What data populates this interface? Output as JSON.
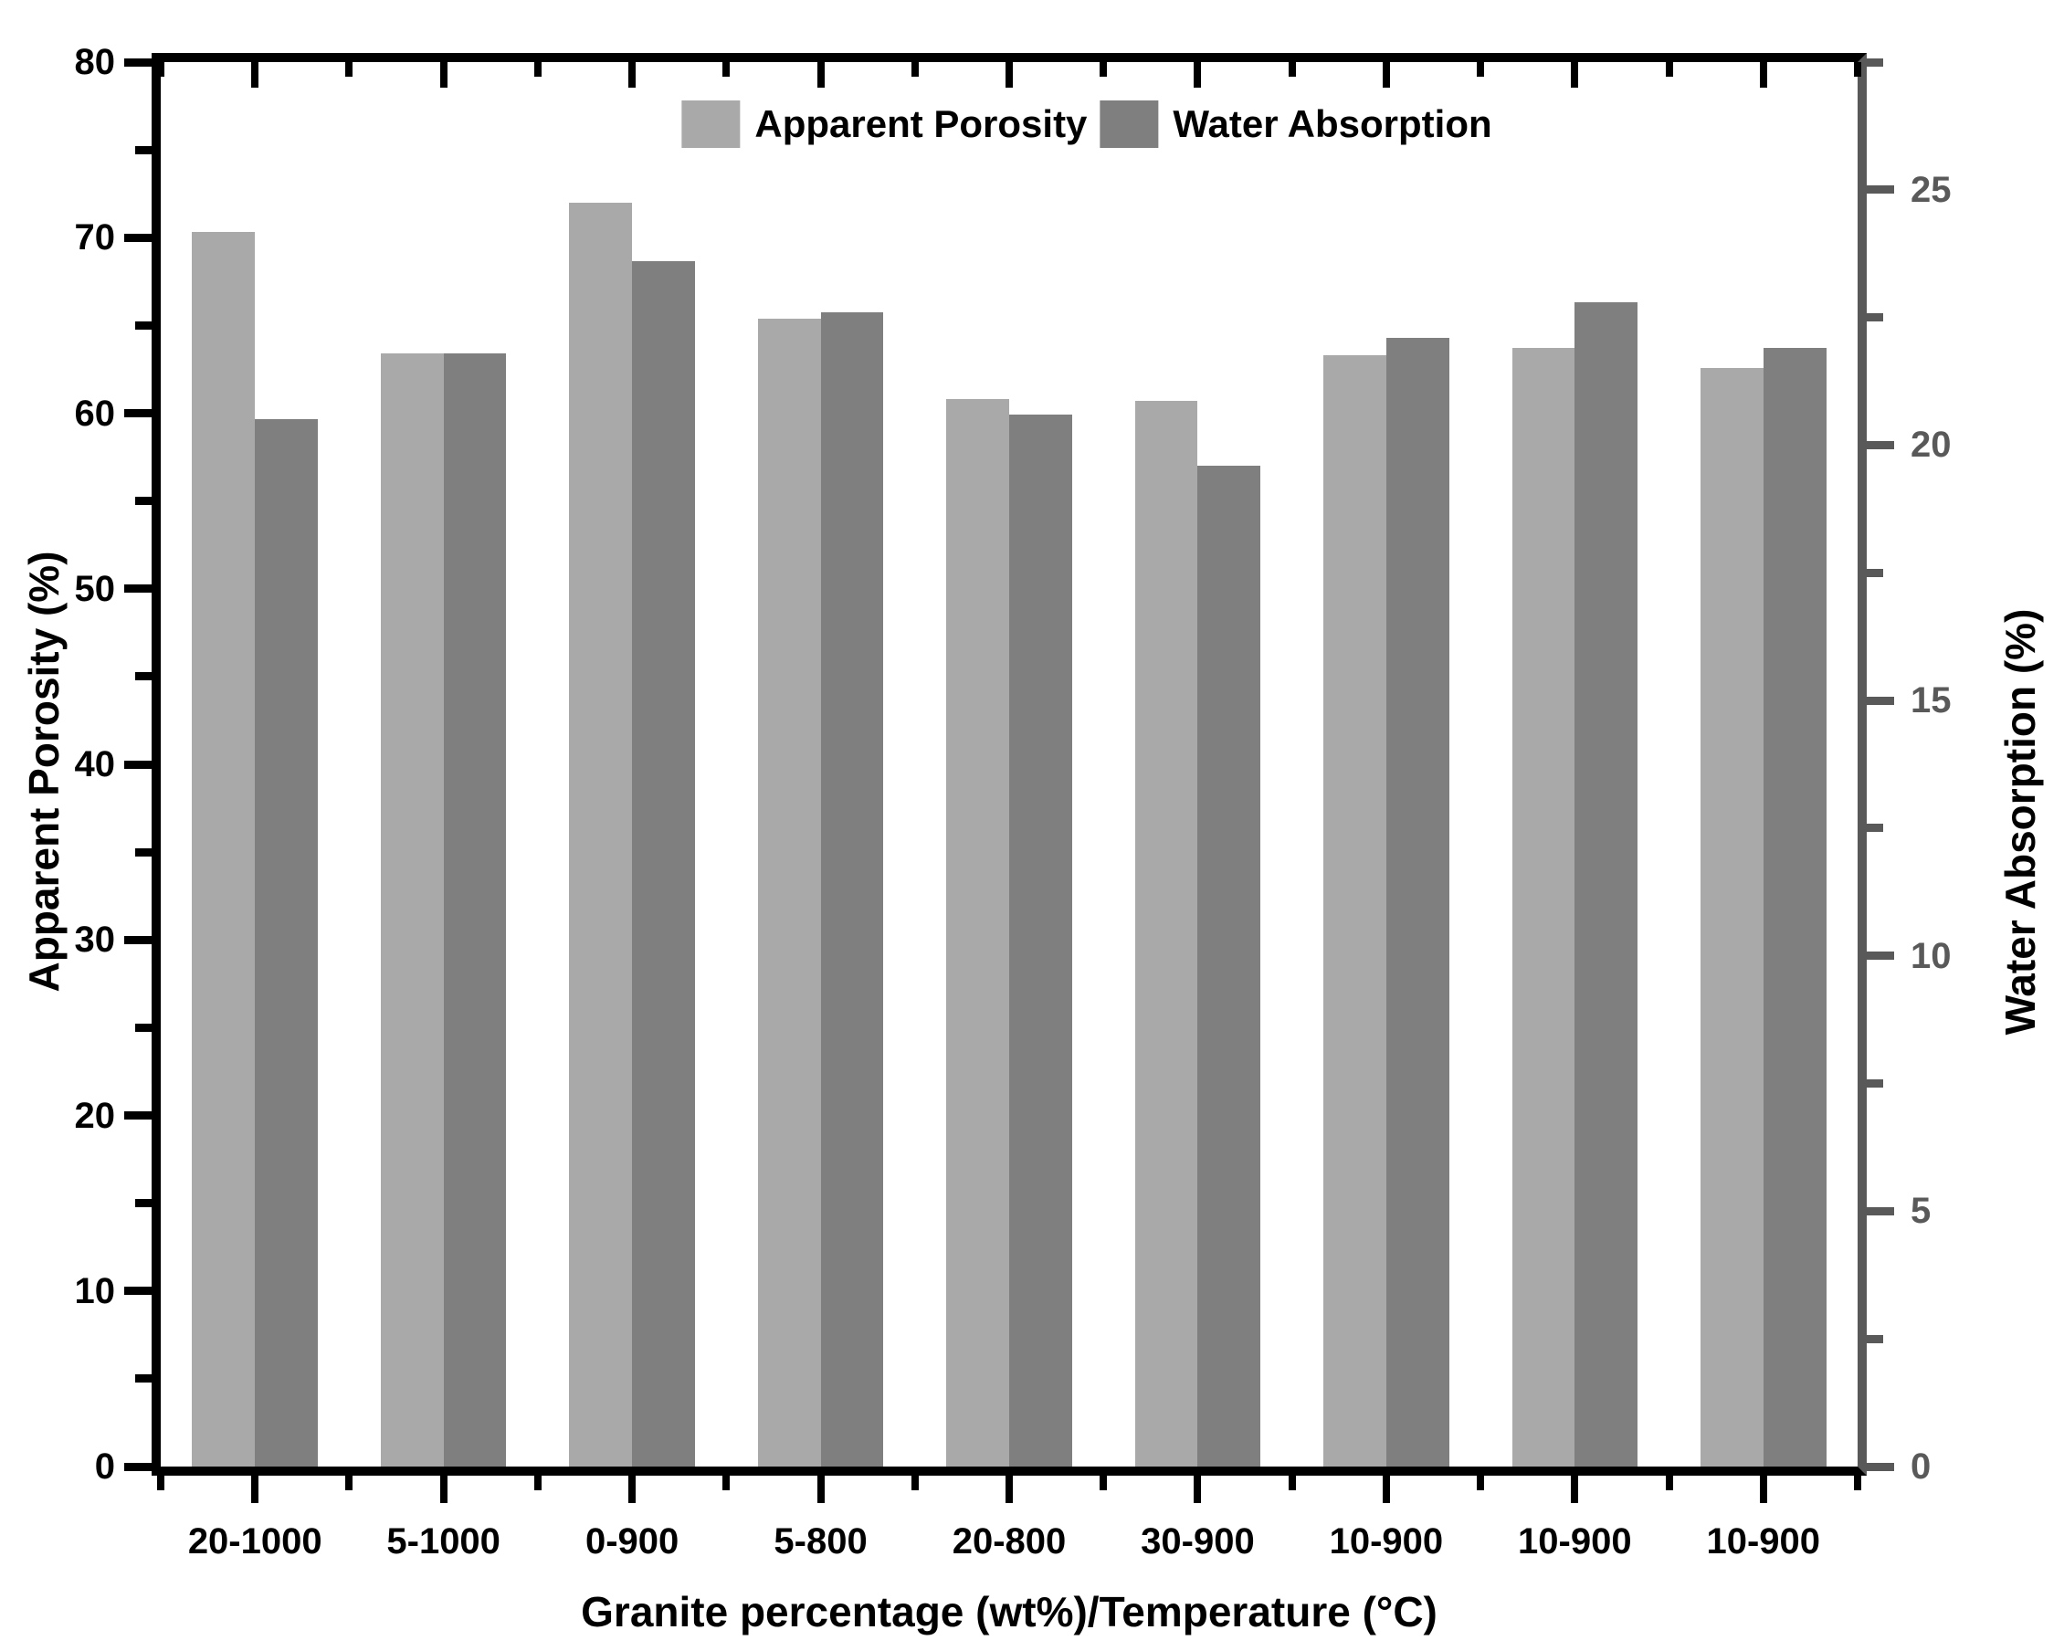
{
  "figure": {
    "background": "#ffffff"
  },
  "chart_data": {
    "type": "bar",
    "title": "",
    "categories": [
      "20-1000",
      "5-1000",
      "0-900",
      "5-800",
      "20-800",
      "30-900",
      "10-900",
      "10-900",
      "10-900"
    ],
    "series": [
      {
        "name": "Apparent Porosity",
        "axis": "left",
        "color": "#a9a9a9",
        "values": [
          70.3,
          63.4,
          72.0,
          65.4,
          60.8,
          60.7,
          63.3,
          63.7,
          62.6
        ]
      },
      {
        "name": "Water Absorption",
        "axis": "right",
        "color": "#7f7f7f",
        "values": [
          20.5,
          21.8,
          23.6,
          22.6,
          20.6,
          19.6,
          22.1,
          22.8,
          21.9
        ]
      }
    ],
    "x_axis": {
      "label": "Granite percentage (wt%)/Temperature (°C)"
    },
    "left_axis": {
      "label": "Apparent Porosity (%)",
      "min": 0,
      "max": 80,
      "major_step": 10,
      "minor_step": 5,
      "tick_labels": [
        "0",
        "10",
        "20",
        "30",
        "40",
        "50",
        "60",
        "70",
        "80"
      ],
      "color": "#000000"
    },
    "right_axis": {
      "label": "Water Absorption (%)",
      "min": 0,
      "max": 27.5,
      "major_step": 5,
      "minor_step": 2.5,
      "max_labeled_tick": 25,
      "tick_labels": [
        "0",
        "5",
        "10",
        "15",
        "20",
        "25"
      ],
      "axis_color": "#595959",
      "label_color": "#000000"
    },
    "legend": {
      "position": "top-center",
      "entries": [
        "Apparent Porosity",
        "Water Absorption"
      ]
    },
    "grid": false
  }
}
